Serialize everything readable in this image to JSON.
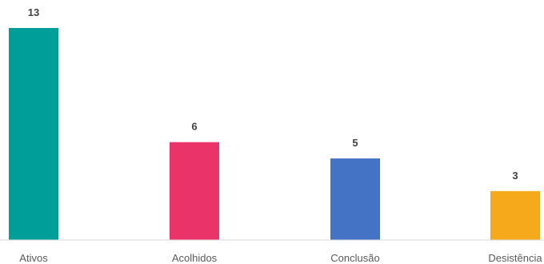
{
  "chart_data": {
    "type": "bar",
    "categories": [
      "Ativos",
      "Acolhidos",
      "Conclusão",
      "Desistência"
    ],
    "values": [
      13,
      6,
      5,
      3
    ],
    "data_labels": [
      "13",
      "6",
      "5",
      "3"
    ],
    "colors": [
      "#009E99",
      "#EA3368",
      "#4472C4",
      "#F5A91B"
    ],
    "ylim": [
      0,
      13
    ],
    "grid": false,
    "legend": "none",
    "axis_color": "#D9D9D9"
  }
}
